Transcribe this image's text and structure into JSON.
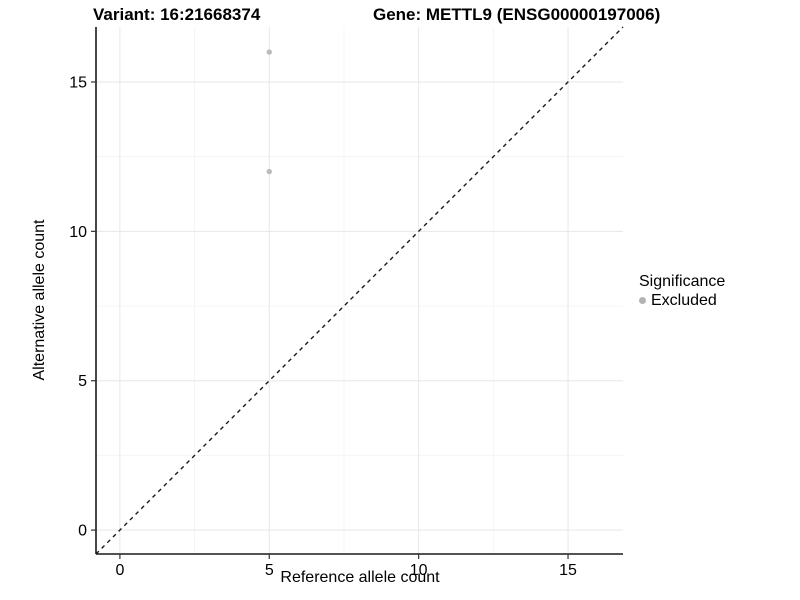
{
  "chart_data": {
    "type": "scatter",
    "title_left": "Variant: 16:21668374",
    "title_right": "Gene: METTL9 (ENSG00000197006)",
    "xlabel": "Reference allele count",
    "ylabel": "Alternative allele count",
    "xlim": [
      -0.8,
      16.84
    ],
    "ylim": [
      -0.8,
      16.84
    ],
    "x_ticks": [
      0,
      5,
      10,
      15
    ],
    "y_ticks": [
      0,
      5,
      10,
      15
    ],
    "x_minor_ticks": [
      2.5,
      7.5,
      12.5
    ],
    "y_minor_ticks": [
      2.5,
      7.5,
      12.5
    ],
    "grid": true,
    "series": [
      {
        "name": "Excluded",
        "color": "#bcbcbc",
        "points": [
          {
            "x": 5,
            "y": 16
          },
          {
            "x": 5,
            "y": 12
          }
        ]
      }
    ],
    "reference_line": {
      "kind": "identity",
      "slope": 1,
      "intercept": 0,
      "style": "dashed",
      "color": "#1a1a1a"
    },
    "legend": {
      "title": "Significance",
      "position": "right",
      "items": [
        {
          "label": "Excluded",
          "color": "#b3b3b3",
          "marker": "circle"
        }
      ]
    }
  },
  "colors": {
    "background": "#ffffff",
    "axis": "#1a1a1a",
    "tick": "#333333",
    "grid_major": "#e7e7e7",
    "grid_minor": "#f4f4f4",
    "text": "#000000"
  }
}
